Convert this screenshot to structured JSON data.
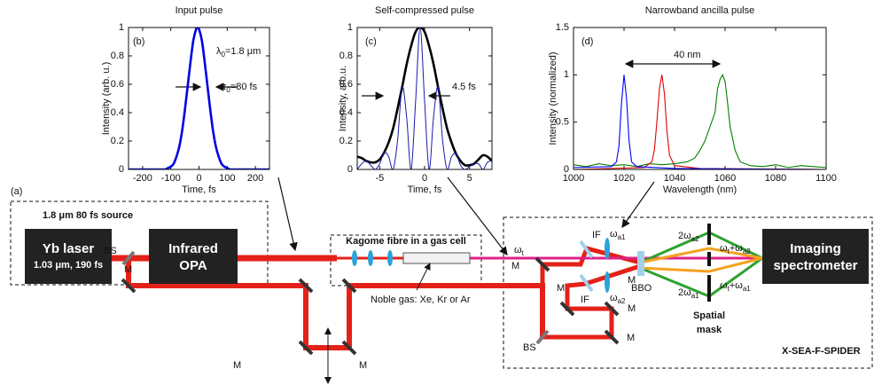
{
  "chart_data": [
    {
      "type": "line",
      "title": "Input pulse",
      "panel": "(b)",
      "xlabel": "Time, fs",
      "ylabel": "Intensity (arb. u.)",
      "annotations": [
        [
          "λ",
          "0",
          "=1.8 μm"
        ],
        [
          "τ",
          "0",
          "=80 fs"
        ]
      ],
      "x": [
        -250,
        -200,
        -150,
        -140,
        -130,
        -120,
        -110,
        -100,
        -90,
        -80,
        -70,
        -60,
        -50,
        -40,
        -30,
        -20,
        -10,
        -5,
        0,
        10,
        20,
        30,
        40,
        50,
        60,
        70,
        80,
        90,
        100,
        110,
        120,
        130,
        150,
        200,
        250
      ],
      "values": [
        0,
        0,
        0,
        0,
        0,
        0,
        0.01,
        0.02,
        0.04,
        0.09,
        0.16,
        0.27,
        0.42,
        0.59,
        0.76,
        0.91,
        0.99,
        1,
        0.99,
        0.91,
        0.76,
        0.59,
        0.42,
        0.27,
        0.16,
        0.09,
        0.04,
        0.02,
        0.01,
        0,
        0,
        0,
        0,
        0,
        0
      ],
      "color": "#0000e6",
      "xlim": [
        -250,
        250
      ],
      "xticks": [
        -200,
        -100,
        0,
        100,
        200
      ],
      "ylim": [
        0,
        1
      ],
      "yticks": [
        0,
        0.2,
        0.4,
        0.6,
        0.8,
        1
      ]
    },
    {
      "type": "line",
      "title": "Self-compressed pulse",
      "panel": "(c)",
      "xlabel": "Time, fs",
      "ylabel": "Intensity, arb.u.",
      "annotations": [
        [
          "4.5 fs"
        ]
      ],
      "x": [
        -7.5,
        -7,
        -6.5,
        -6,
        -5.5,
        -5,
        -4.5,
        -4,
        -3.5,
        -3,
        -2.5,
        -2,
        -1.5,
        -1,
        -0.5,
        0,
        0.5,
        1,
        1.5,
        2,
        2.5,
        3,
        3.5,
        4,
        4.5,
        5,
        5.5,
        6,
        6.5,
        7,
        7.5
      ],
      "series": [
        {
          "color": "#000000",
          "values": [
            0.09,
            0.08,
            0.06,
            0.05,
            0.05,
            0.07,
            0.12,
            0.19,
            0.29,
            0.43,
            0.58,
            0.74,
            0.87,
            0.97,
            1,
            0.97,
            0.87,
            0.74,
            0.58,
            0.43,
            0.29,
            0.19,
            0.11,
            0.06,
            0.03,
            0.03,
            0.04,
            0.07,
            0.1,
            0.09,
            0.06
          ]
        },
        {
          "color": "#1a1aa8",
          "values": [
            0,
            0.04,
            0.06,
            0.03,
            0,
            0.04,
            0.12,
            0.09,
            0,
            0.21,
            0.58,
            0.37,
            0,
            0.48,
            1,
            0.48,
            0,
            0.37,
            0.58,
            0.21,
            0,
            0.09,
            0.11,
            0.03,
            0,
            0.02,
            0.04,
            0.04,
            0,
            0.05,
            0.06
          ]
        }
      ],
      "xlim": [
        -7.5,
        7.5
      ],
      "xticks": [
        -5,
        0,
        5
      ],
      "ylim": [
        0,
        1
      ],
      "yticks": [
        0,
        0.2,
        0.4,
        0.6,
        0.8,
        1
      ]
    },
    {
      "type": "line",
      "title": "Narrowband ancilla pulse",
      "panel": "(d)",
      "xlabel": "Wavelength (nm)",
      "ylabel": "Intensity (normalized)",
      "annotations": [
        [
          "40 nm"
        ]
      ],
      "series": [
        {
          "color": "#008000",
          "x": [
            1000,
            1005,
            1010,
            1015,
            1020,
            1025,
            1030,
            1035,
            1040,
            1045,
            1048,
            1050,
            1052,
            1054,
            1056,
            1057,
            1058,
            1059,
            1060,
            1061,
            1062,
            1064,
            1066,
            1070,
            1075,
            1080,
            1085,
            1090,
            1095,
            1100
          ],
          "values": [
            0.05,
            0.03,
            0.06,
            0.04,
            0.05,
            0.03,
            0.06,
            0.05,
            0.06,
            0.08,
            0.12,
            0.2,
            0.3,
            0.45,
            0.6,
            0.85,
            0.95,
            1,
            0.93,
            0.7,
            0.45,
            0.2,
            0.08,
            0.04,
            0.03,
            0.05,
            0.02,
            0.04,
            0.03,
            0.02
          ]
        },
        {
          "color": "#e00000",
          "x": [
            1000,
            1028,
            1031,
            1032,
            1033,
            1034,
            1035,
            1036,
            1037,
            1038,
            1040,
            1050,
            1100
          ],
          "values": [
            0,
            0.02,
            0.08,
            0.2,
            0.5,
            0.85,
            1,
            0.8,
            0.4,
            0.15,
            0.04,
            0.01,
            0
          ]
        },
        {
          "color": "#0000ff",
          "x": [
            1000,
            1015,
            1017,
            1018,
            1019,
            1020,
            1021,
            1022,
            1023,
            1025,
            1040,
            1100
          ],
          "values": [
            0.02,
            0.03,
            0.08,
            0.25,
            0.7,
            1,
            0.75,
            0.3,
            0.08,
            0.03,
            0.01,
            0
          ]
        }
      ],
      "xlim": [
        1000,
        1100
      ],
      "xticks": [
        1000,
        1020,
        1040,
        1060,
        1080,
        1100
      ],
      "ylim": [
        0,
        1.5
      ],
      "yticks": [
        0,
        0.5,
        1,
        1.5
      ]
    }
  ],
  "diagram": {
    "panel": "(a)",
    "source": "1.8 μm 80 fs source",
    "yb_laser": [
      "Yb laser",
      "1.03 μm, 190 fs"
    ],
    "opa": [
      "Infrared",
      "OPA"
    ],
    "fibre": "Kagome fibre in a gas cell",
    "gas": "Noble gas: Xe, Kr or Ar",
    "beamsplitters": [
      "BS",
      "BS"
    ],
    "mirrors": [
      "M",
      "M",
      "M",
      "M",
      "M",
      "M",
      "M",
      "M"
    ],
    "spider": {
      "omega_t": [
        "ω",
        "t"
      ],
      "omega_a1": [
        "ω",
        "a1"
      ],
      "omega_a2": [
        "ω",
        "a2"
      ],
      "filters": [
        "IF",
        "IF"
      ],
      "crystal": "BBO",
      "shg_a2": [
        "2ω",
        "a2"
      ],
      "shg_a1": [
        "2ω",
        "a1"
      ],
      "sum_a2": [
        "ω",
        "t",
        "+ω",
        "a2"
      ],
      "sum_a1": [
        "ω",
        "t",
        "+ω",
        "a1"
      ],
      "mask": [
        "Spatial",
        "mask"
      ],
      "name": "X-SEA-F-SPIDER"
    },
    "spectrometer": [
      "Imaging",
      "spectrometer"
    ]
  }
}
